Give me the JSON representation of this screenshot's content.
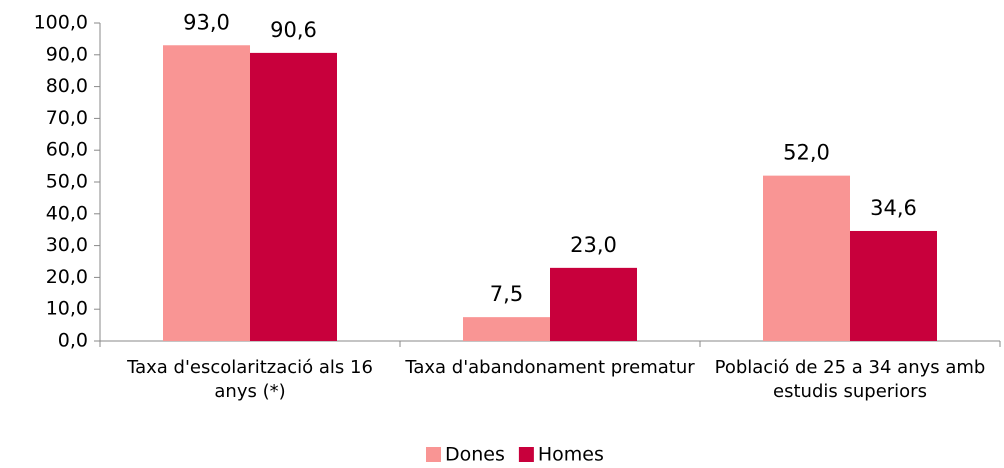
{
  "chart_data": {
    "type": "bar",
    "categories": [
      "Taxa d'escolarització als 16 anys (*)",
      "Taxa d'abandonament prematur",
      "Població de 25 a 34 anys amb estudis superiors"
    ],
    "series": [
      {
        "name": "Dones",
        "color": "#f99594",
        "values": [
          93.0,
          7.5,
          52.0
        ],
        "value_labels": [
          "93,0",
          "7,5",
          "52,0"
        ]
      },
      {
        "name": "Homes",
        "color": "#c8003c",
        "values": [
          90.6,
          23.0,
          34.6
        ],
        "value_labels": [
          "90,6",
          "23,0",
          "34,6"
        ]
      }
    ],
    "ylim": [
      0,
      100
    ],
    "yticks": [
      {
        "value": 0,
        "label": "0,0"
      },
      {
        "value": 10,
        "label": "10,0"
      },
      {
        "value": 20,
        "label": "20,0"
      },
      {
        "value": 30,
        "label": "30,0"
      },
      {
        "value": 40,
        "label": "40,0"
      },
      {
        "value": 50,
        "label": "50,0"
      },
      {
        "value": 60,
        "label": "60,0"
      },
      {
        "value": 70,
        "label": "70,0"
      },
      {
        "value": 80,
        "label": "80,0"
      },
      {
        "value": 90,
        "label": "90,0"
      },
      {
        "value": {
          "value": 100,
          "label": "100,0"
        },
        "label": "100,0"
      }
    ],
    "legend": "bottom"
  }
}
